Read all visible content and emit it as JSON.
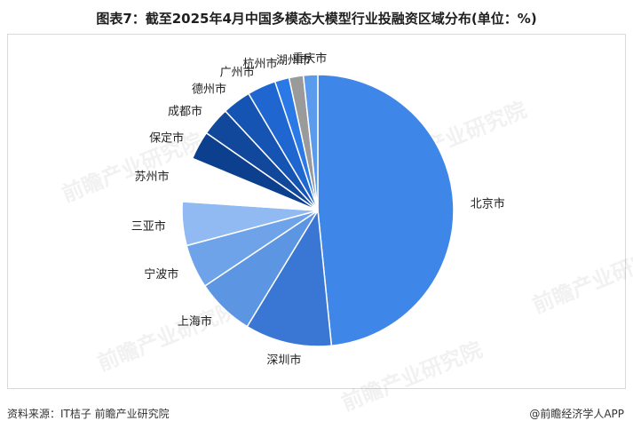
{
  "page": {
    "title": "图表7：截至2025年4月中国多模态大模型行业投融资区域分布(单位：%)",
    "source": "资料来源：IT桔子 前瞻产业研究院",
    "brand": "@前瞻经济学人APP",
    "watermark": "前瞻产业研究院"
  },
  "chart_data": {
    "type": "pie",
    "title": "图表7：截至2025年4月中国多模态大模型行业投融资区域分布(单位：%)",
    "unit": "%",
    "start_angle": "12 o'clock",
    "direction": "clockwise",
    "categories": [
      "北京市",
      "深圳市",
      "上海市",
      "宁波市",
      "三亚市",
      "苏州市",
      "保定市",
      "成都市",
      "德州市",
      "广州市",
      "杭州市",
      "湖州市",
      "重庆市"
    ],
    "values": [
      48.3,
      10.3,
      6.9,
      5.2,
      5.2,
      5.2,
      3.4,
      3.4,
      3.4,
      3.4,
      1.7,
      1.7,
      1.7
    ],
    "colors": [
      "#3E86E8",
      "#3A76D4",
      "#5C95E2",
      "#6EA3EA",
      "#91BAF2",
      "#FFFFFF",
      "#0D3F8F",
      "#12489C",
      "#1654B3",
      "#1F66D0",
      "#2A79E6",
      "#9A9A9A",
      "#5A9BEE"
    ],
    "legend": "none"
  }
}
